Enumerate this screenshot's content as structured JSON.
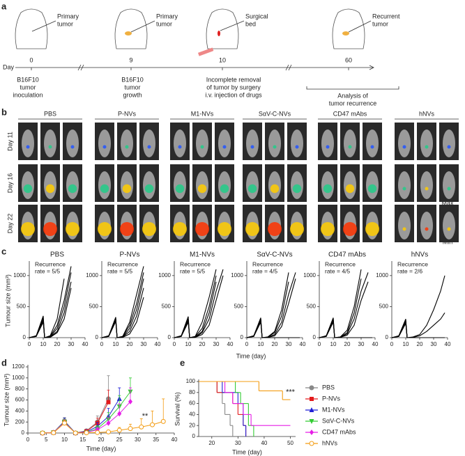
{
  "panel_a": {
    "letter": "a",
    "callouts": [
      [
        "Primary",
        "tumor"
      ],
      [
        "Primary",
        "tumor"
      ],
      [
        "Surgical",
        "bed"
      ],
      [
        "Recurrent",
        "tumor"
      ]
    ],
    "day_label": "Day",
    "days": [
      "0",
      "9",
      "10",
      "60"
    ],
    "captions": [
      [
        "B16F10",
        "tumor",
        "inoculation"
      ],
      [
        "B16F10",
        "tumor",
        "growth"
      ],
      [
        "Incomplete removal",
        "of tumor by surgery",
        "i.v. injection of drugs"
      ],
      [
        "Analysis of",
        "tumor recurrence"
      ]
    ]
  },
  "panel_b": {
    "letter": "b",
    "groups": [
      "PBS",
      "P-NVs",
      "M1-NVs",
      "SαV-C-NVs",
      "CD47 mAbs",
      "hNVs"
    ],
    "days": [
      "Day 11",
      "Day 16",
      "Day 22"
    ],
    "scale": [
      "Max",
      "Min"
    ]
  },
  "panel_c": {
    "letter": "c",
    "y_label": "Tumour size (mm³)",
    "x_label": "Time (day)"
  },
  "panel_d": {
    "letter": "d"
  },
  "panel_e": {
    "letter": "e"
  },
  "chart_data": [
    {
      "type": "line",
      "title": "PBS",
      "annotation": [
        "Recurrence",
        "rate = 5/5"
      ],
      "x": [
        0,
        5,
        10,
        11,
        15,
        20,
        25,
        30,
        35,
        38
      ],
      "xlim": [
        0,
        40
      ],
      "xticks": [
        0,
        10,
        20,
        30,
        40
      ],
      "ylim": [
        0,
        1200
      ],
      "yticks": [
        0,
        500,
        1000
      ],
      "color": "#000000",
      "series": [
        {
          "values": [
            0,
            30,
            350,
            0,
            20,
            200,
            600,
            1150,
            null,
            null
          ]
        },
        {
          "values": [
            0,
            30,
            300,
            0,
            30,
            300,
            950,
            null,
            null,
            null
          ]
        },
        {
          "values": [
            0,
            20,
            320,
            0,
            10,
            150,
            500,
            1050,
            null,
            null
          ]
        },
        {
          "values": [
            0,
            25,
            280,
            0,
            10,
            100,
            400,
            900,
            null,
            null
          ]
        },
        {
          "values": [
            0,
            20,
            250,
            0,
            5,
            80,
            300,
            800,
            null,
            null
          ]
        }
      ]
    },
    {
      "type": "line",
      "title": "P-NVs",
      "annotation": [
        "Recurrence",
        "rate = 5/5"
      ],
      "x": [
        0,
        5,
        10,
        11,
        15,
        20,
        25,
        30,
        35,
        38
      ],
      "xlim": [
        0,
        40
      ],
      "xticks": [
        0,
        10,
        20,
        30,
        40
      ],
      "ylim": [
        0,
        1200
      ],
      "yticks": [
        0,
        500,
        1000
      ],
      "color": "#000000",
      "series": [
        {
          "values": [
            0,
            30,
            330,
            0,
            20,
            250,
            700,
            1150,
            null,
            null
          ]
        },
        {
          "values": [
            0,
            30,
            300,
            0,
            20,
            200,
            550,
            1050,
            null,
            null
          ]
        },
        {
          "values": [
            0,
            20,
            310,
            0,
            10,
            150,
            450,
            950,
            null,
            null
          ]
        },
        {
          "values": [
            0,
            25,
            280,
            0,
            10,
            100,
            350,
            800,
            null,
            null
          ]
        },
        {
          "values": [
            0,
            20,
            260,
            0,
            5,
            60,
            250,
            650,
            null,
            null
          ]
        }
      ]
    },
    {
      "type": "line",
      "title": "M1-NVs",
      "annotation": [
        "Recurrence",
        "rate = 5/5"
      ],
      "x": [
        0,
        5,
        10,
        11,
        15,
        20,
        25,
        30,
        35,
        38
      ],
      "xlim": [
        0,
        40
      ],
      "xticks": [
        0,
        10,
        20,
        30,
        40
      ],
      "ylim": [
        0,
        1200
      ],
      "yticks": [
        0,
        500,
        1000
      ],
      "color": "#000000",
      "series": [
        {
          "values": [
            0,
            30,
            340,
            0,
            20,
            250,
            650,
            1100,
            null,
            null
          ]
        },
        {
          "values": [
            0,
            30,
            300,
            0,
            15,
            150,
            500,
            1000,
            null,
            null
          ]
        },
        {
          "values": [
            0,
            20,
            300,
            0,
            10,
            100,
            400,
            900,
            null,
            null
          ]
        },
        {
          "values": [
            0,
            25,
            270,
            0,
            5,
            80,
            300,
            750,
            1100,
            null
          ]
        },
        {
          "values": [
            0,
            20,
            250,
            0,
            5,
            50,
            200,
            600,
            1000,
            null
          ]
        }
      ]
    },
    {
      "type": "line",
      "title": "SαV-C-NVs",
      "annotation": [
        "Recurrence",
        "rate = 4/5"
      ],
      "x": [
        0,
        5,
        10,
        11,
        15,
        20,
        25,
        30,
        35,
        38
      ],
      "xlim": [
        0,
        40
      ],
      "xticks": [
        0,
        10,
        20,
        30,
        40
      ],
      "ylim": [
        0,
        1200
      ],
      "yticks": [
        0,
        500,
        1000
      ],
      "color": "#000000",
      "series": [
        {
          "values": [
            0,
            30,
            320,
            0,
            10,
            100,
            450,
            1050,
            null,
            null
          ]
        },
        {
          "values": [
            0,
            30,
            300,
            0,
            10,
            80,
            350,
            900,
            null,
            null
          ]
        },
        {
          "values": [
            0,
            20,
            300,
            0,
            5,
            50,
            250,
            700,
            1050,
            null
          ]
        },
        {
          "values": [
            0,
            25,
            270,
            0,
            5,
            30,
            180,
            550,
            950,
            null
          ]
        },
        {
          "values": [
            0,
            20,
            250,
            0,
            0,
            0,
            0,
            0,
            0,
            0
          ]
        }
      ]
    },
    {
      "type": "line",
      "title": "CD47 mAbs",
      "annotation": [
        "Recurrence",
        "rate = 4/5"
      ],
      "x": [
        0,
        5,
        10,
        11,
        15,
        20,
        25,
        30,
        35,
        38
      ],
      "xlim": [
        0,
        40
      ],
      "xticks": [
        0,
        10,
        20,
        30,
        40
      ],
      "ylim": [
        0,
        1200
      ],
      "yticks": [
        0,
        500,
        1000
      ],
      "color": "#000000",
      "series": [
        {
          "values": [
            0,
            30,
            320,
            0,
            10,
            120,
            500,
            1100,
            null,
            null
          ]
        },
        {
          "values": [
            0,
            30,
            300,
            0,
            10,
            80,
            400,
            950,
            null,
            null
          ]
        },
        {
          "values": [
            0,
            20,
            290,
            0,
            5,
            60,
            300,
            750,
            1050,
            null
          ]
        },
        {
          "values": [
            0,
            25,
            270,
            0,
            5,
            40,
            200,
            600,
            900,
            null
          ]
        },
        {
          "values": [
            0,
            20,
            250,
            0,
            0,
            0,
            0,
            0,
            0,
            0
          ]
        }
      ]
    },
    {
      "type": "line",
      "title": "hNVs",
      "annotation": [
        "Recurrence",
        "rate = 2/6"
      ],
      "x": [
        0,
        5,
        10,
        11,
        15,
        20,
        25,
        30,
        35,
        38
      ],
      "xlim": [
        0,
        40
      ],
      "xticks": [
        0,
        10,
        20,
        30,
        40
      ],
      "ylim": [
        0,
        1200
      ],
      "yticks": [
        0,
        500,
        1000
      ],
      "color": "#000000",
      "series": [
        {
          "values": [
            0,
            30,
            300,
            0,
            10,
            50,
            200,
            450,
            750,
            1000
          ]
        },
        {
          "values": [
            0,
            25,
            280,
            0,
            5,
            30,
            100,
            200,
            300,
            400
          ]
        },
        {
          "values": [
            0,
            20,
            260,
            0,
            0,
            0,
            0,
            0,
            0,
            0
          ]
        },
        {
          "values": [
            0,
            20,
            250,
            0,
            0,
            0,
            0,
            0,
            0,
            0
          ]
        },
        {
          "values": [
            0,
            20,
            240,
            0,
            0,
            0,
            0,
            0,
            0,
            0
          ]
        },
        {
          "values": [
            0,
            20,
            230,
            0,
            0,
            0,
            0,
            0,
            0,
            0
          ]
        }
      ]
    },
    {
      "type": "line",
      "y_label": "Tumour size (mm³)",
      "x_label": "Time (day)",
      "annotation": "**",
      "x": [
        4,
        7,
        10,
        13,
        16,
        19,
        22,
        25,
        28,
        31,
        34,
        37
      ],
      "xlim": [
        0,
        40
      ],
      "xticks": [
        0,
        5,
        10,
        15,
        20,
        25,
        30,
        35,
        40
      ],
      "ylim": [
        0,
        1200
      ],
      "yticks": [
        0,
        200,
        400,
        600,
        800,
        1000,
        1200
      ],
      "series": [
        {
          "color": "#888888",
          "marker": "circle",
          "values": [
            0,
            10,
            220,
            0,
            40,
            200,
            620,
            null,
            null,
            null,
            null,
            null
          ],
          "errors": [
            0,
            5,
            60,
            0,
            20,
            110,
            420,
            null,
            null,
            null,
            null,
            null
          ]
        },
        {
          "color": "#e31a1c",
          "marker": "square",
          "values": [
            0,
            10,
            200,
            0,
            30,
            180,
            560,
            null,
            null,
            null,
            null,
            null
          ],
          "errors": [
            0,
            5,
            50,
            0,
            20,
            90,
            220,
            null,
            null,
            null,
            null,
            null
          ]
        },
        {
          "color": "#1f1fd6",
          "marker": "triangle",
          "values": [
            0,
            10,
            210,
            0,
            20,
            120,
            300,
            620,
            null,
            null,
            null,
            null
          ],
          "errors": [
            0,
            5,
            60,
            0,
            15,
            70,
            150,
            200,
            null,
            null,
            null,
            null
          ]
        },
        {
          "color": "#33cc33",
          "marker": "triangle-down",
          "values": [
            0,
            10,
            200,
            0,
            10,
            80,
            250,
            480,
            750,
            null,
            null,
            null
          ],
          "errors": [
            0,
            5,
            50,
            0,
            10,
            50,
            120,
            200,
            250,
            null,
            null,
            null
          ]
        },
        {
          "color": "#e61ee6",
          "marker": "diamond",
          "values": [
            0,
            10,
            190,
            0,
            10,
            60,
            180,
            350,
            570,
            null,
            null,
            null
          ],
          "errors": [
            0,
            5,
            50,
            0,
            10,
            40,
            100,
            180,
            250,
            null,
            null,
            null
          ]
        },
        {
          "color": "#f39c12",
          "marker": "open-circle",
          "values": [
            0,
            5,
            180,
            0,
            5,
            10,
            20,
            50,
            80,
            110,
            150,
            210
          ],
          "errors": [
            0,
            5,
            50,
            0,
            5,
            10,
            20,
            50,
            80,
            150,
            250,
            410
          ]
        }
      ]
    },
    {
      "type": "step",
      "y_label": "Survival (%)",
      "x_label": "Time (day)",
      "annotation": "***",
      "legend": "right",
      "xlim": [
        15,
        52
      ],
      "xticks": [
        20,
        30,
        40,
        50
      ],
      "ylim": [
        0,
        100
      ],
      "yticks": [
        0,
        20,
        40,
        60,
        80,
        100
      ],
      "series": [
        {
          "name": "PBS",
          "color": "#888888",
          "marker": "circle",
          "x": [
            15,
            22,
            24,
            25,
            27,
            28
          ],
          "values": [
            100,
            80,
            60,
            40,
            20,
            0
          ]
        },
        {
          "name": "P-NVs",
          "color": "#e31a1c",
          "marker": "square",
          "x": [
            15,
            22,
            28,
            30,
            32,
            33
          ],
          "values": [
            100,
            80,
            60,
            40,
            20,
            0
          ]
        },
        {
          "name": "M1-NVs",
          "color": "#1f1fd6",
          "marker": "triangle",
          "x": [
            15,
            24,
            30,
            32,
            33
          ],
          "values": [
            100,
            80,
            60,
            20,
            0
          ]
        },
        {
          "name": "SαV-C-NVs",
          "color": "#33cc33",
          "marker": "triangle-down",
          "x": [
            15,
            29,
            31,
            34,
            36
          ],
          "values": [
            100,
            80,
            60,
            20,
            0
          ]
        },
        {
          "name": "CD47 mAbs",
          "color": "#e61ee6",
          "marker": "diamond",
          "x": [
            15,
            25,
            28,
            32,
            35,
            50
          ],
          "values": [
            100,
            80,
            60,
            40,
            20,
            20
          ]
        },
        {
          "name": "hNVs",
          "color": "#f39c12",
          "marker": "open-circle",
          "x": [
            15,
            38,
            47,
            50
          ],
          "values": [
            100,
            83,
            67,
            67
          ]
        }
      ]
    }
  ]
}
